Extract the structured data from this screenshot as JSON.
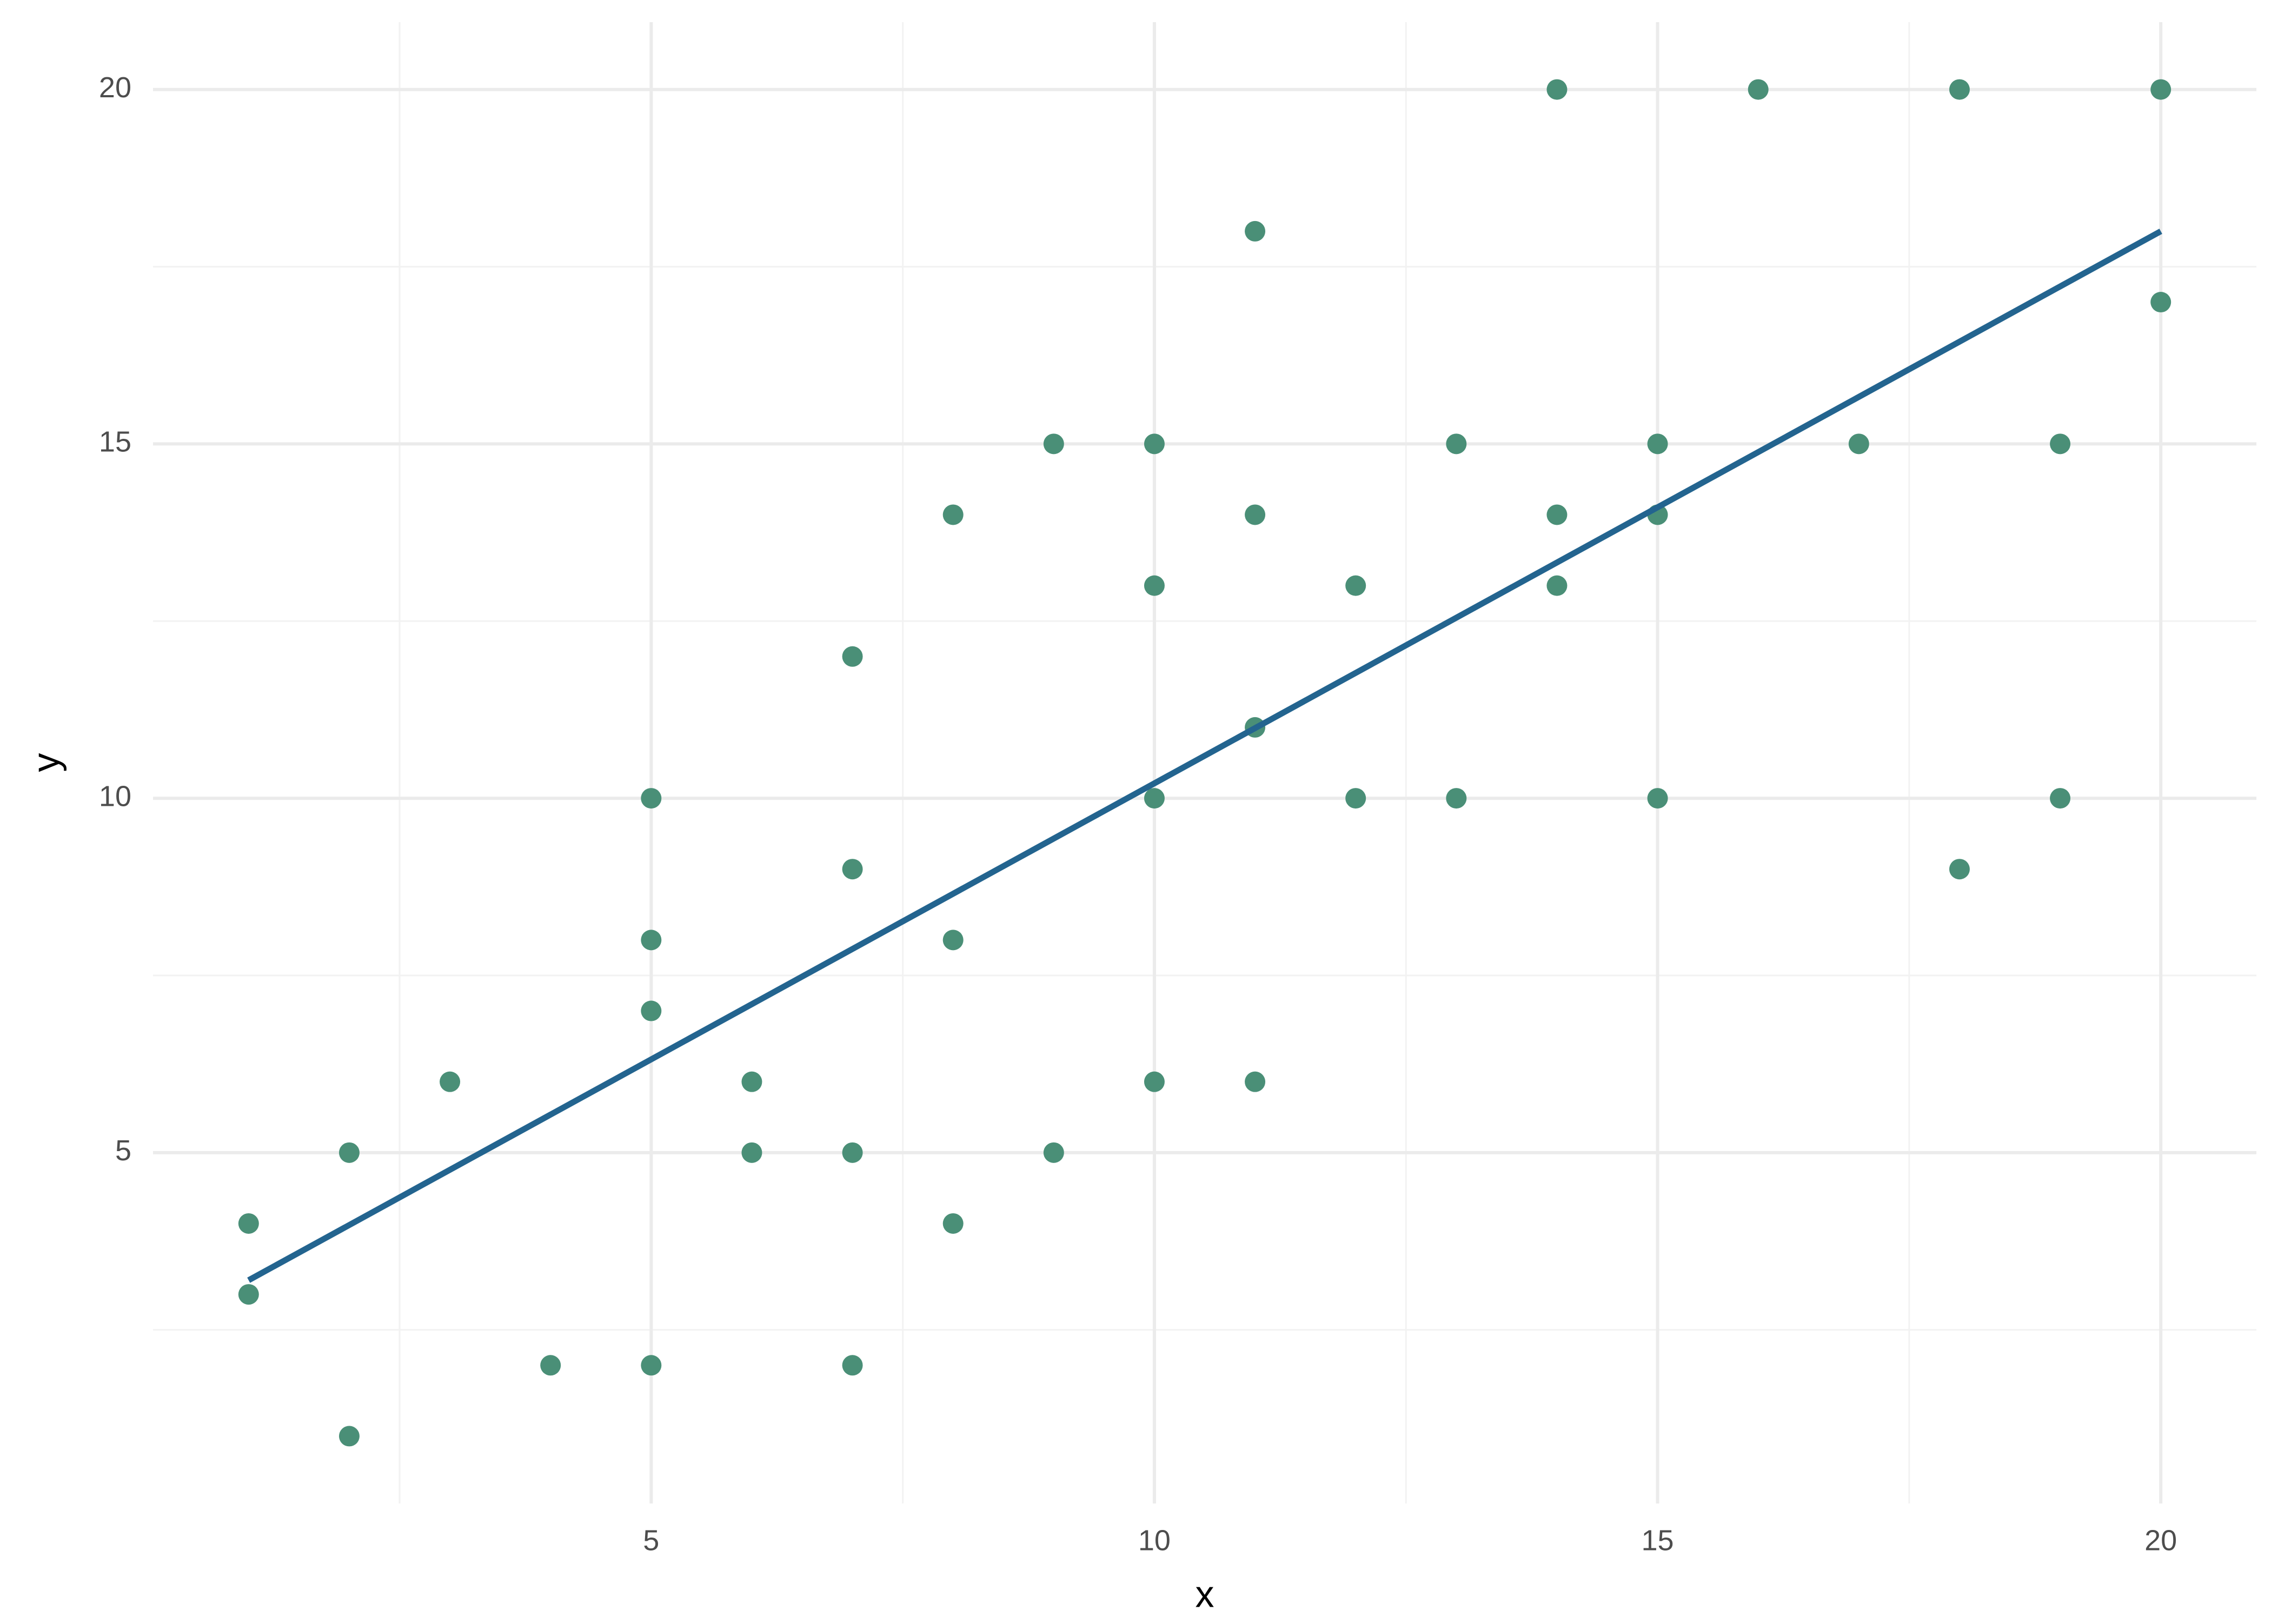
{
  "chart_data": {
    "type": "scatter",
    "x_label": "x",
    "y_label": "y",
    "series": [
      {
        "type": "scatter",
        "color": "#4a8f77",
        "x": [
          1,
          1,
          2,
          2,
          3,
          4,
          5,
          5,
          5,
          5,
          6,
          6,
          7,
          7,
          7,
          7,
          8,
          8,
          8,
          9,
          9,
          10,
          10,
          10,
          10,
          11,
          11,
          11,
          11,
          12,
          12,
          13,
          13,
          14,
          14,
          14,
          15,
          15,
          15,
          16,
          17,
          18,
          18,
          19,
          19,
          20,
          20
        ],
        "values": [
          4,
          3,
          5,
          1,
          6,
          2,
          10,
          8,
          7,
          2,
          6,
          5,
          12,
          9,
          5,
          2,
          14,
          8,
          4,
          15,
          5,
          15,
          13,
          10,
          6,
          18,
          14,
          11,
          6,
          13,
          10,
          15,
          10,
          20,
          14,
          13,
          15,
          14,
          10,
          20,
          15,
          20,
          9,
          15,
          10,
          20,
          17
        ]
      },
      {
        "type": "line",
        "color": "#23648f",
        "x": [
          1,
          20
        ],
        "values": [
          3.2,
          18.0
        ]
      }
    ],
    "xlim": [
      0.05,
      20.95
    ],
    "ylim": [
      0.05,
      20.95
    ],
    "xticks": [
      5,
      10,
      15,
      20
    ],
    "yticks": [
      5,
      10,
      15,
      20
    ],
    "x_minor_grid": [
      2.5,
      7.5,
      12.5,
      17.5
    ],
    "y_minor_grid": [
      2.5,
      7.5,
      12.5,
      17.5
    ],
    "grid": true
  }
}
